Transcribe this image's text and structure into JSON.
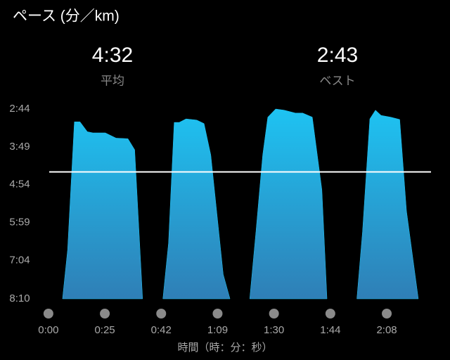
{
  "header": {
    "average": {
      "value": 272,
      "label": "4:32"
    },
    "average_caption": "平均",
    "best": "2:43",
    "best_caption": "ベスト"
  },
  "chart_data": {
    "type": "area",
    "title": "ペース (分／km)",
    "x_label": "時間（時：分：秒）",
    "xlim": [
      -0.36,
      6.81
    ],
    "xticks": [
      {
        "value": 0,
        "label": "0:00"
      },
      {
        "value": 1,
        "label": "0:25"
      },
      {
        "value": 2,
        "label": "0:42"
      },
      {
        "value": 3,
        "label": "1:09"
      },
      {
        "value": 4,
        "label": "1:30"
      },
      {
        "value": 5,
        "label": "1:44"
      },
      {
        "value": 6,
        "label": "2:08"
      }
    ],
    "ylim": [
      490,
      164
    ],
    "yticks": [
      {
        "value": 164,
        "label": "2:44"
      },
      {
        "value": 229,
        "label": "3:49"
      },
      {
        "value": 294,
        "label": "4:54"
      },
      {
        "value": 359,
        "label": "5:59"
      },
      {
        "value": 424,
        "label": "7:04"
      },
      {
        "value": 490,
        "label": "8:10"
      }
    ],
    "series": [
      {
        "color": "#1ec3f2",
        "x": [
          0.25,
          0.34,
          0.46,
          0.56,
          0.69,
          0.79,
          1.01,
          1.2,
          1.41,
          1.53,
          1.67,
          null,
          2.03,
          2.13,
          2.23,
          2.32,
          2.44,
          2.63,
          2.76,
          2.88,
          3.1,
          3.22,
          null,
          3.57,
          3.68,
          3.8,
          3.89,
          4.03,
          4.18,
          4.38,
          4.51,
          4.68,
          4.85,
          4.94,
          null,
          5.47,
          5.57,
          5.7,
          5.8,
          5.9,
          6.07,
          6.23,
          6.35,
          6.56
        ],
        "values": [
          490,
          406,
          186,
          186,
          203,
          205,
          205,
          214,
          215,
          234,
          490,
          null,
          490,
          394,
          187,
          187,
          181,
          183,
          189,
          243,
          448,
          490,
          null,
          490,
          375,
          243,
          178,
          164,
          166,
          171,
          171,
          178,
          303,
          490,
          null,
          490,
          375,
          181,
          166,
          175,
          178,
          182,
          339,
          490
        ]
      }
    ],
    "average_line": {
      "value": 272,
      "color": "#ffffff"
    }
  }
}
